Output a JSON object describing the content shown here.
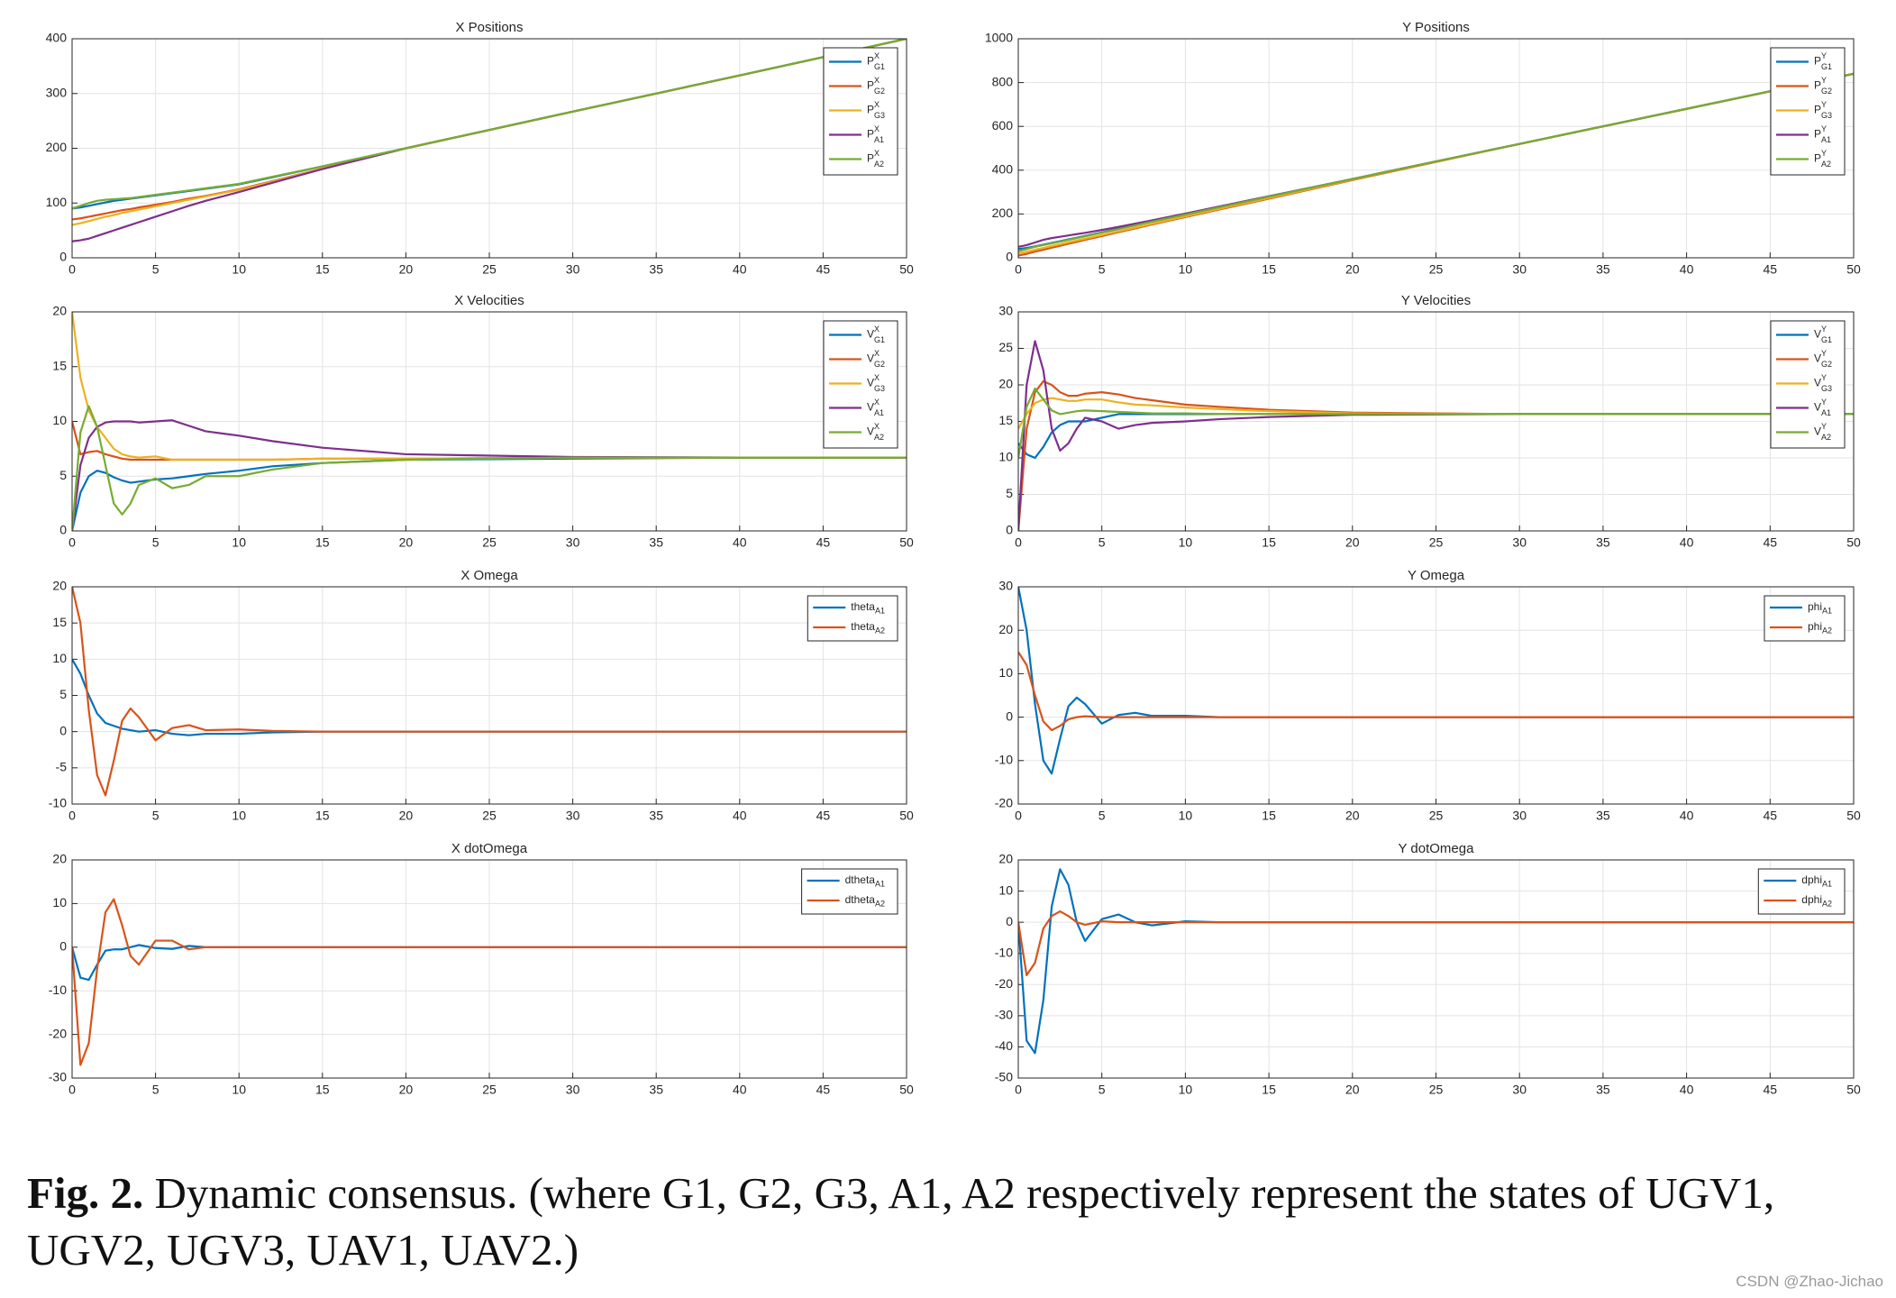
{
  "chart_data": [
    {
      "type": "line",
      "title": "X Positions",
      "x": [
        0,
        0.5,
        1,
        1.5,
        2,
        2.5,
        3,
        3.5,
        4,
        5,
        6,
        7,
        8,
        10,
        12,
        15,
        20,
        30,
        40,
        50
      ],
      "xlim": [
        0,
        50
      ],
      "xticks": [
        0,
        5,
        10,
        15,
        20,
        25,
        30,
        35,
        40,
        45,
        50
      ],
      "ylim": [
        0,
        400
      ],
      "yticks": [
        0,
        100,
        200,
        300,
        400
      ],
      "grid": true,
      "legend": "upper right",
      "series": [
        {
          "name": "P",
          "sup": "X",
          "sub": "G1",
          "color": "#0072bd",
          "values": [
            90,
            92,
            95,
            98,
            101,
            104,
            106,
            108,
            110,
            114,
            118,
            122,
            126,
            134,
            147,
            167,
            200,
            267,
            333,
            400
          ]
        },
        {
          "name": "P",
          "sup": "X",
          "sub": "G2",
          "color": "#d95319",
          "values": [
            70,
            72,
            75,
            78,
            81,
            84,
            87,
            89,
            92,
            97,
            102,
            108,
            113,
            125,
            140,
            163,
            200,
            267,
            333,
            400
          ]
        },
        {
          "name": "P",
          "sup": "X",
          "sub": "G3",
          "color": "#edb120",
          "values": [
            60,
            63,
            67,
            71,
            75,
            78,
            82,
            85,
            88,
            94,
            100,
            106,
            112,
            124,
            139,
            163,
            200,
            267,
            333,
            400
          ]
        },
        {
          "name": "P",
          "sup": "X",
          "sub": "A1",
          "color": "#7e2f8e",
          "values": [
            30,
            32,
            35,
            40,
            45,
            50,
            55,
            60,
            65,
            75,
            85,
            95,
            104,
            120,
            137,
            162,
            200,
            267,
            333,
            400
          ]
        },
        {
          "name": "P",
          "sup": "X",
          "sub": "A2",
          "color": "#77ac30",
          "values": [
            90,
            95,
            100,
            104,
            106,
            107,
            108,
            109,
            111,
            115,
            119,
            123,
            127,
            135,
            148,
            167,
            200,
            267,
            333,
            400
          ]
        }
      ]
    },
    {
      "type": "line",
      "title": "Y Positions",
      "x": [
        0,
        0.5,
        1,
        1.5,
        2,
        2.5,
        3,
        3.5,
        4,
        5,
        6,
        7,
        8,
        10,
        12,
        15,
        20,
        30,
        40,
        50
      ],
      "xlim": [
        0,
        50
      ],
      "xticks": [
        0,
        5,
        10,
        15,
        20,
        25,
        30,
        35,
        40,
        45,
        50
      ],
      "ylim": [
        0,
        1000
      ],
      "yticks": [
        0,
        200,
        400,
        600,
        800,
        1000
      ],
      "grid": true,
      "legend": "upper right",
      "series": [
        {
          "name": "P",
          "sup": "Y",
          "sub": "G1",
          "color": "#0072bd",
          "values": [
            40,
            45,
            52,
            60,
            68,
            76,
            84,
            92,
            100,
            116,
            133,
            149,
            166,
            198,
            231,
            279,
            360,
            520,
            680,
            840
          ]
        },
        {
          "name": "P",
          "sup": "Y",
          "sub": "G2",
          "color": "#d95319",
          "values": [
            10,
            18,
            28,
            37,
            46,
            55,
            64,
            73,
            82,
            99,
            117,
            134,
            152,
            186,
            220,
            270,
            355,
            520,
            680,
            840
          ]
        },
        {
          "name": "P",
          "sup": "Y",
          "sub": "G3",
          "color": "#edb120",
          "values": [
            20,
            28,
            37,
            45,
            54,
            62,
            71,
            79,
            87,
            104,
            121,
            138,
            155,
            189,
            223,
            273,
            357,
            520,
            680,
            840
          ]
        },
        {
          "name": "P",
          "sup": "Y",
          "sub": "A1",
          "color": "#7e2f8e",
          "values": [
            50,
            58,
            70,
            82,
            90,
            96,
            102,
            108,
            114,
            127,
            141,
            156,
            171,
            202,
            234,
            281,
            360,
            520,
            680,
            840
          ]
        },
        {
          "name": "P",
          "sup": "Y",
          "sub": "A2",
          "color": "#77ac30",
          "values": [
            30,
            40,
            50,
            58,
            66,
            74,
            82,
            90,
            98,
            115,
            131,
            148,
            165,
            197,
            230,
            279,
            360,
            520,
            680,
            840
          ]
        }
      ]
    },
    {
      "type": "line",
      "title": "X Velocities",
      "x": [
        0,
        0.5,
        1,
        1.5,
        2,
        2.5,
        3,
        3.5,
        4,
        5,
        6,
        7,
        8,
        10,
        12,
        15,
        20,
        30,
        40,
        50
      ],
      "xlim": [
        0,
        50
      ],
      "xticks": [
        0,
        5,
        10,
        15,
        20,
        25,
        30,
        35,
        40,
        45,
        50
      ],
      "ylim": [
        0,
        20
      ],
      "yticks": [
        0,
        5,
        10,
        15,
        20
      ],
      "grid": true,
      "legend": "upper right",
      "series": [
        {
          "name": "V",
          "sup": "X",
          "sub": "G1",
          "color": "#0072bd",
          "values": [
            0,
            3.5,
            5,
            5.5,
            5.3,
            4.9,
            4.6,
            4.4,
            4.5,
            4.7,
            4.8,
            5,
            5.2,
            5.5,
            5.9,
            6.2,
            6.5,
            6.6,
            6.7,
            6.7
          ]
        },
        {
          "name": "V",
          "sup": "X",
          "sub": "G2",
          "color": "#d95319",
          "values": [
            10,
            7,
            7.2,
            7.3,
            7,
            6.8,
            6.6,
            6.5,
            6.5,
            6.5,
            6.5,
            6.5,
            6.5,
            6.5,
            6.5,
            6.6,
            6.6,
            6.7,
            6.7,
            6.7
          ]
        },
        {
          "name": "V",
          "sup": "X",
          "sub": "G3",
          "color": "#edb120",
          "values": [
            20,
            14,
            11,
            9.5,
            8.5,
            7.5,
            7,
            6.8,
            6.7,
            6.8,
            6.5,
            6.5,
            6.5,
            6.5,
            6.5,
            6.6,
            6.6,
            6.7,
            6.7,
            6.7
          ]
        },
        {
          "name": "V",
          "sup": "X",
          "sub": "A1",
          "color": "#7e2f8e",
          "values": [
            0,
            6,
            8.5,
            9.5,
            9.9,
            10,
            10,
            10,
            9.9,
            10,
            10.1,
            9.6,
            9.1,
            8.7,
            8.2,
            7.6,
            7,
            6.75,
            6.7,
            6.7
          ]
        },
        {
          "name": "V",
          "sup": "X",
          "sub": "A2",
          "color": "#77ac30",
          "values": [
            0,
            9,
            11.4,
            9.5,
            6,
            2.5,
            1.5,
            2.5,
            4.2,
            4.8,
            3.9,
            4.2,
            5,
            5,
            5.6,
            6.2,
            6.5,
            6.7,
            6.7,
            6.7
          ]
        }
      ]
    },
    {
      "type": "line",
      "title": "Y Velocities",
      "x": [
        0,
        0.5,
        1,
        1.5,
        2,
        2.5,
        3,
        3.5,
        4,
        5,
        6,
        7,
        8,
        10,
        12,
        15,
        20,
        30,
        40,
        50
      ],
      "xlim": [
        0,
        50
      ],
      "xticks": [
        0,
        5,
        10,
        15,
        20,
        25,
        30,
        35,
        40,
        45,
        50
      ],
      "ylim": [
        0,
        30
      ],
      "yticks": [
        0,
        5,
        10,
        15,
        20,
        25,
        30
      ],
      "grid": true,
      "legend": "upper right",
      "series": [
        {
          "name": "V",
          "sup": "Y",
          "sub": "G1",
          "color": "#0072bd",
          "values": [
            12,
            10.5,
            10,
            11.5,
            13.5,
            14.5,
            15,
            15,
            15,
            15.5,
            16,
            16,
            16,
            16,
            16,
            16,
            16,
            16,
            16,
            16
          ]
        },
        {
          "name": "V",
          "sup": "Y",
          "sub": "G2",
          "color": "#d95319",
          "values": [
            0,
            14,
            19,
            20.5,
            20,
            19,
            18.5,
            18.5,
            18.8,
            19,
            18.7,
            18.2,
            17.9,
            17.3,
            17,
            16.6,
            16.2,
            16,
            16,
            16
          ]
        },
        {
          "name": "V",
          "sup": "Y",
          "sub": "G3",
          "color": "#edb120",
          "values": [
            14,
            16,
            17.5,
            18,
            18.2,
            18,
            17.8,
            17.8,
            18,
            18,
            17.6,
            17.3,
            17.2,
            16.9,
            16.7,
            16.4,
            16.1,
            16,
            16,
            16
          ]
        },
        {
          "name": "V",
          "sup": "Y",
          "sub": "A1",
          "color": "#7e2f8e",
          "values": [
            0,
            20,
            26,
            22,
            14,
            11,
            12,
            14,
            15.5,
            15,
            14,
            14.5,
            14.8,
            15,
            15.3,
            15.6,
            15.9,
            16,
            16,
            16
          ]
        },
        {
          "name": "V",
          "sup": "Y",
          "sub": "A2",
          "color": "#77ac30",
          "values": [
            10,
            17,
            19.5,
            18,
            16.5,
            16,
            16.2,
            16.4,
            16.5,
            16.4,
            16.3,
            16.2,
            16.1,
            16.1,
            16,
            16,
            16,
            16,
            16,
            16
          ]
        }
      ]
    },
    {
      "type": "line",
      "title": "X Omega",
      "x": [
        0,
        0.5,
        1,
        1.5,
        2,
        2.5,
        3,
        3.5,
        4,
        5,
        6,
        7,
        8,
        10,
        12,
        15,
        20,
        30,
        40,
        50
      ],
      "xlim": [
        0,
        50
      ],
      "xticks": [
        0,
        5,
        10,
        15,
        20,
        25,
        30,
        35,
        40,
        45,
        50
      ],
      "ylim": [
        -10,
        20
      ],
      "yticks": [
        -10,
        -5,
        0,
        5,
        10,
        15,
        20
      ],
      "grid": true,
      "legend": "upper right",
      "series": [
        {
          "name": "theta",
          "sub": "A1",
          "color": "#0072bd",
          "values": [
            10,
            8,
            5,
            2.5,
            1.2,
            0.8,
            0.4,
            0.2,
            0,
            0.2,
            -0.3,
            -0.5,
            -0.3,
            -0.3,
            -0.1,
            0,
            0,
            0,
            0,
            0
          ]
        },
        {
          "name": "theta",
          "sub": "A2",
          "color": "#d95319",
          "values": [
            20,
            15,
            3,
            -6,
            -8.8,
            -4,
            1.5,
            3.2,
            2,
            -1.2,
            0.5,
            0.9,
            0.2,
            0.3,
            0.1,
            0,
            0,
            0,
            0,
            0
          ]
        }
      ]
    },
    {
      "type": "line",
      "title": "Y Omega",
      "x": [
        0,
        0.5,
        1,
        1.5,
        2,
        2.5,
        3,
        3.5,
        4,
        5,
        6,
        7,
        8,
        10,
        12,
        15,
        20,
        30,
        40,
        50
      ],
      "xlim": [
        0,
        50
      ],
      "xticks": [
        0,
        5,
        10,
        15,
        20,
        25,
        30,
        35,
        40,
        45,
        50
      ],
      "ylim": [
        -20,
        30
      ],
      "yticks": [
        -20,
        -10,
        0,
        10,
        20,
        30
      ],
      "grid": true,
      "legend": "upper right",
      "series": [
        {
          "name": "phi",
          "sub": "A1",
          "color": "#0072bd",
          "values": [
            30,
            20,
            3,
            -10,
            -13,
            -5,
            2.5,
            4.5,
            3,
            -1.5,
            0.5,
            1,
            0.3,
            0.3,
            0,
            0,
            0,
            0,
            0,
            0
          ]
        },
        {
          "name": "phi",
          "sub": "A2",
          "color": "#d95319",
          "values": [
            15,
            12,
            5,
            -1,
            -3,
            -2,
            -0.5,
            0,
            0.2,
            0,
            0,
            0,
            0,
            0,
            0,
            0,
            0,
            0,
            0,
            0
          ]
        }
      ]
    },
    {
      "type": "line",
      "title": "X dotOmega",
      "x": [
        0,
        0.5,
        1,
        1.5,
        2,
        2.5,
        3,
        3.5,
        4,
        5,
        6,
        7,
        8,
        10,
        12,
        15,
        20,
        30,
        40,
        50
      ],
      "xlim": [
        0,
        50
      ],
      "xticks": [
        0,
        5,
        10,
        15,
        20,
        25,
        30,
        35,
        40,
        45,
        50
      ],
      "ylim": [
        -30,
        20
      ],
      "yticks": [
        -30,
        -20,
        -10,
        0,
        10,
        20
      ],
      "grid": true,
      "legend": "upper right",
      "series": [
        {
          "name": "dtheta",
          "sub": "A1",
          "color": "#0072bd",
          "values": [
            0,
            -7,
            -7.5,
            -4,
            -0.8,
            -0.5,
            -0.5,
            0,
            0.5,
            -0.2,
            -0.4,
            0.3,
            0,
            0,
            0,
            0,
            0,
            0,
            0,
            0
          ]
        },
        {
          "name": "dtheta",
          "sub": "A2",
          "color": "#d95319",
          "values": [
            0,
            -27,
            -22,
            -5,
            8,
            11,
            5,
            -2,
            -4,
            1.5,
            1.5,
            -0.5,
            0,
            0,
            0,
            0,
            0,
            0,
            0,
            0
          ]
        }
      ]
    },
    {
      "type": "line",
      "title": "Y dotOmega",
      "x": [
        0,
        0.5,
        1,
        1.5,
        2,
        2.5,
        3,
        3.5,
        4,
        5,
        6,
        7,
        8,
        10,
        12,
        15,
        20,
        30,
        40,
        50
      ],
      "xlim": [
        0,
        50
      ],
      "xticks": [
        0,
        5,
        10,
        15,
        20,
        25,
        30,
        35,
        40,
        45,
        50
      ],
      "ylim": [
        -50,
        20
      ],
      "yticks": [
        -50,
        -40,
        -30,
        -20,
        -10,
        0,
        10,
        20
      ],
      "grid": true,
      "legend": "upper right",
      "series": [
        {
          "name": "dphi",
          "sub": "A1",
          "color": "#0072bd",
          "values": [
            0,
            -38,
            -42,
            -25,
            5,
            17,
            12,
            0,
            -6,
            1,
            2.5,
            0,
            -1,
            0.3,
            0,
            0,
            0,
            0,
            0,
            0
          ]
        },
        {
          "name": "dphi",
          "sub": "A2",
          "color": "#d95319",
          "values": [
            0,
            -17,
            -13,
            -2,
            2,
            3.5,
            2,
            0,
            -0.8,
            0.3,
            0,
            0,
            0,
            0,
            0,
            0,
            0,
            0,
            0,
            0
          ]
        }
      ]
    }
  ],
  "caption": {
    "label": "Fig. 2.",
    "text": "Dynamic consensus. (where G1, G2, G3, A1, A2 respectively represent the states of UGV1, UGV2, UGV3, UAV1, UAV2.)"
  },
  "watermark": "CSDN @Zhao-Jichao"
}
